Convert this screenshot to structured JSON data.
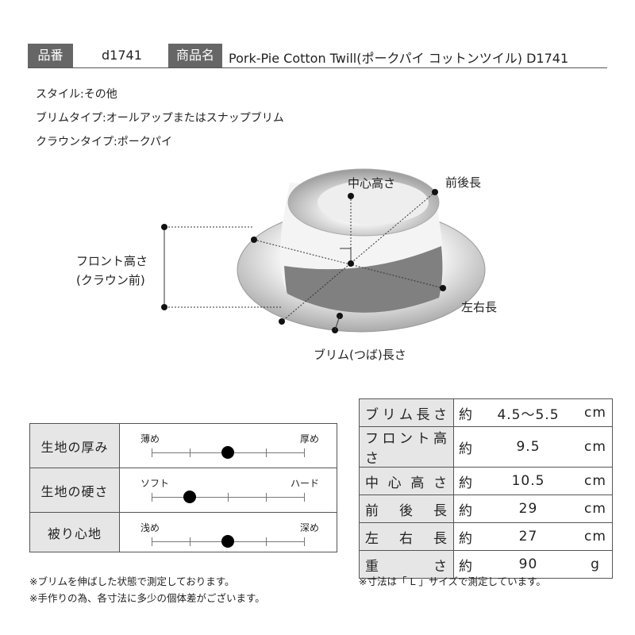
{
  "header": {
    "code_label": "品番",
    "code": "d1741",
    "name_label": "商品名",
    "name": "Pork-Pie Cotton Twill(ポークパイ コットンツイル) D1741"
  },
  "specs": [
    "スタイル:その他",
    "ブリムタイプ:オールアップまたはスナップブリム",
    "クラウンタイプ:ポークパイ"
  ],
  "diagram": {
    "center_height": "中心高さ",
    "front_back": "前後長",
    "front_height": [
      "フロント高さ",
      "(クラウン前)"
    ],
    "left_right": "左右長",
    "brim_length": "ブリム(つば)長さ"
  },
  "scales": {
    "steps": 5,
    "rows": [
      {
        "label": "生地の厚み",
        "left": "薄め",
        "right": "厚め",
        "level": 3
      },
      {
        "label": "生地の硬さ",
        "left": "ソフト",
        "right": "ハード",
        "level": 2
      },
      {
        "label": "被り心地",
        "left": "浅め",
        "right": "深め",
        "level": 3
      }
    ]
  },
  "size_table": {
    "rows": [
      [
        "ブリム長さ",
        "約",
        "4.5〜5.5",
        "cm"
      ],
      [
        "フロント高さ",
        "約",
        "9.5",
        "cm"
      ],
      [
        "中心高さ",
        "約",
        "10.5",
        "cm"
      ],
      [
        "前後長",
        "約",
        "29",
        "cm"
      ],
      [
        "左右長",
        "約",
        "27",
        "cm"
      ],
      [
        "重さ",
        "約",
        "90",
        "g"
      ]
    ]
  },
  "notes": [
    "※ブリムを伸ばした状態で測定しております。",
    "※手作りの為、各寸法に多少の個体差がございます。",
    "※寸法は「 L 」サイズで測定しています。"
  ]
}
